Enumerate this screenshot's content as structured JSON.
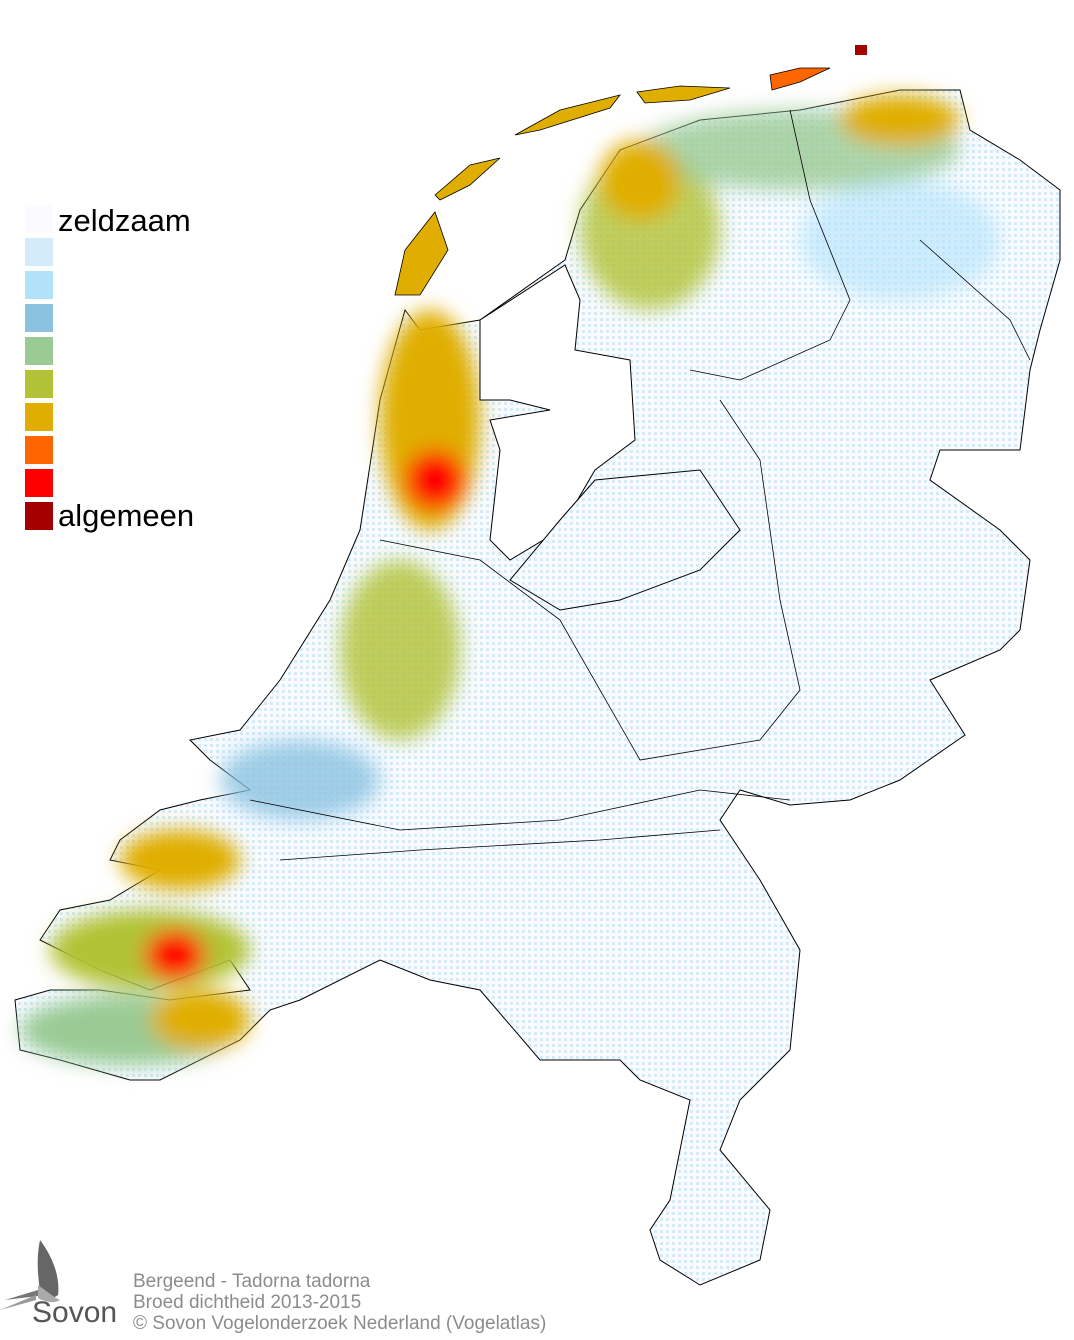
{
  "legend": {
    "low_label": "zeldzaam",
    "high_label": "algemeen",
    "colors": [
      "#fbfbff",
      "#d4ecfa",
      "#b1e2fa",
      "#8bc2e0",
      "#9acb94",
      "#b2c236",
      "#e0ae00",
      "#ff6600",
      "#ff0000",
      "#a50000"
    ]
  },
  "footer": {
    "species": "Bergeend - Tadorna tadorna",
    "subtitle": "Broed dichtheid 2013-2015",
    "copyright": "© Sovon Vogelonderzoek Nederland (Vogelatlas)"
  },
  "logo": {
    "text": "Sovon",
    "icon": "swallow-icon"
  }
}
